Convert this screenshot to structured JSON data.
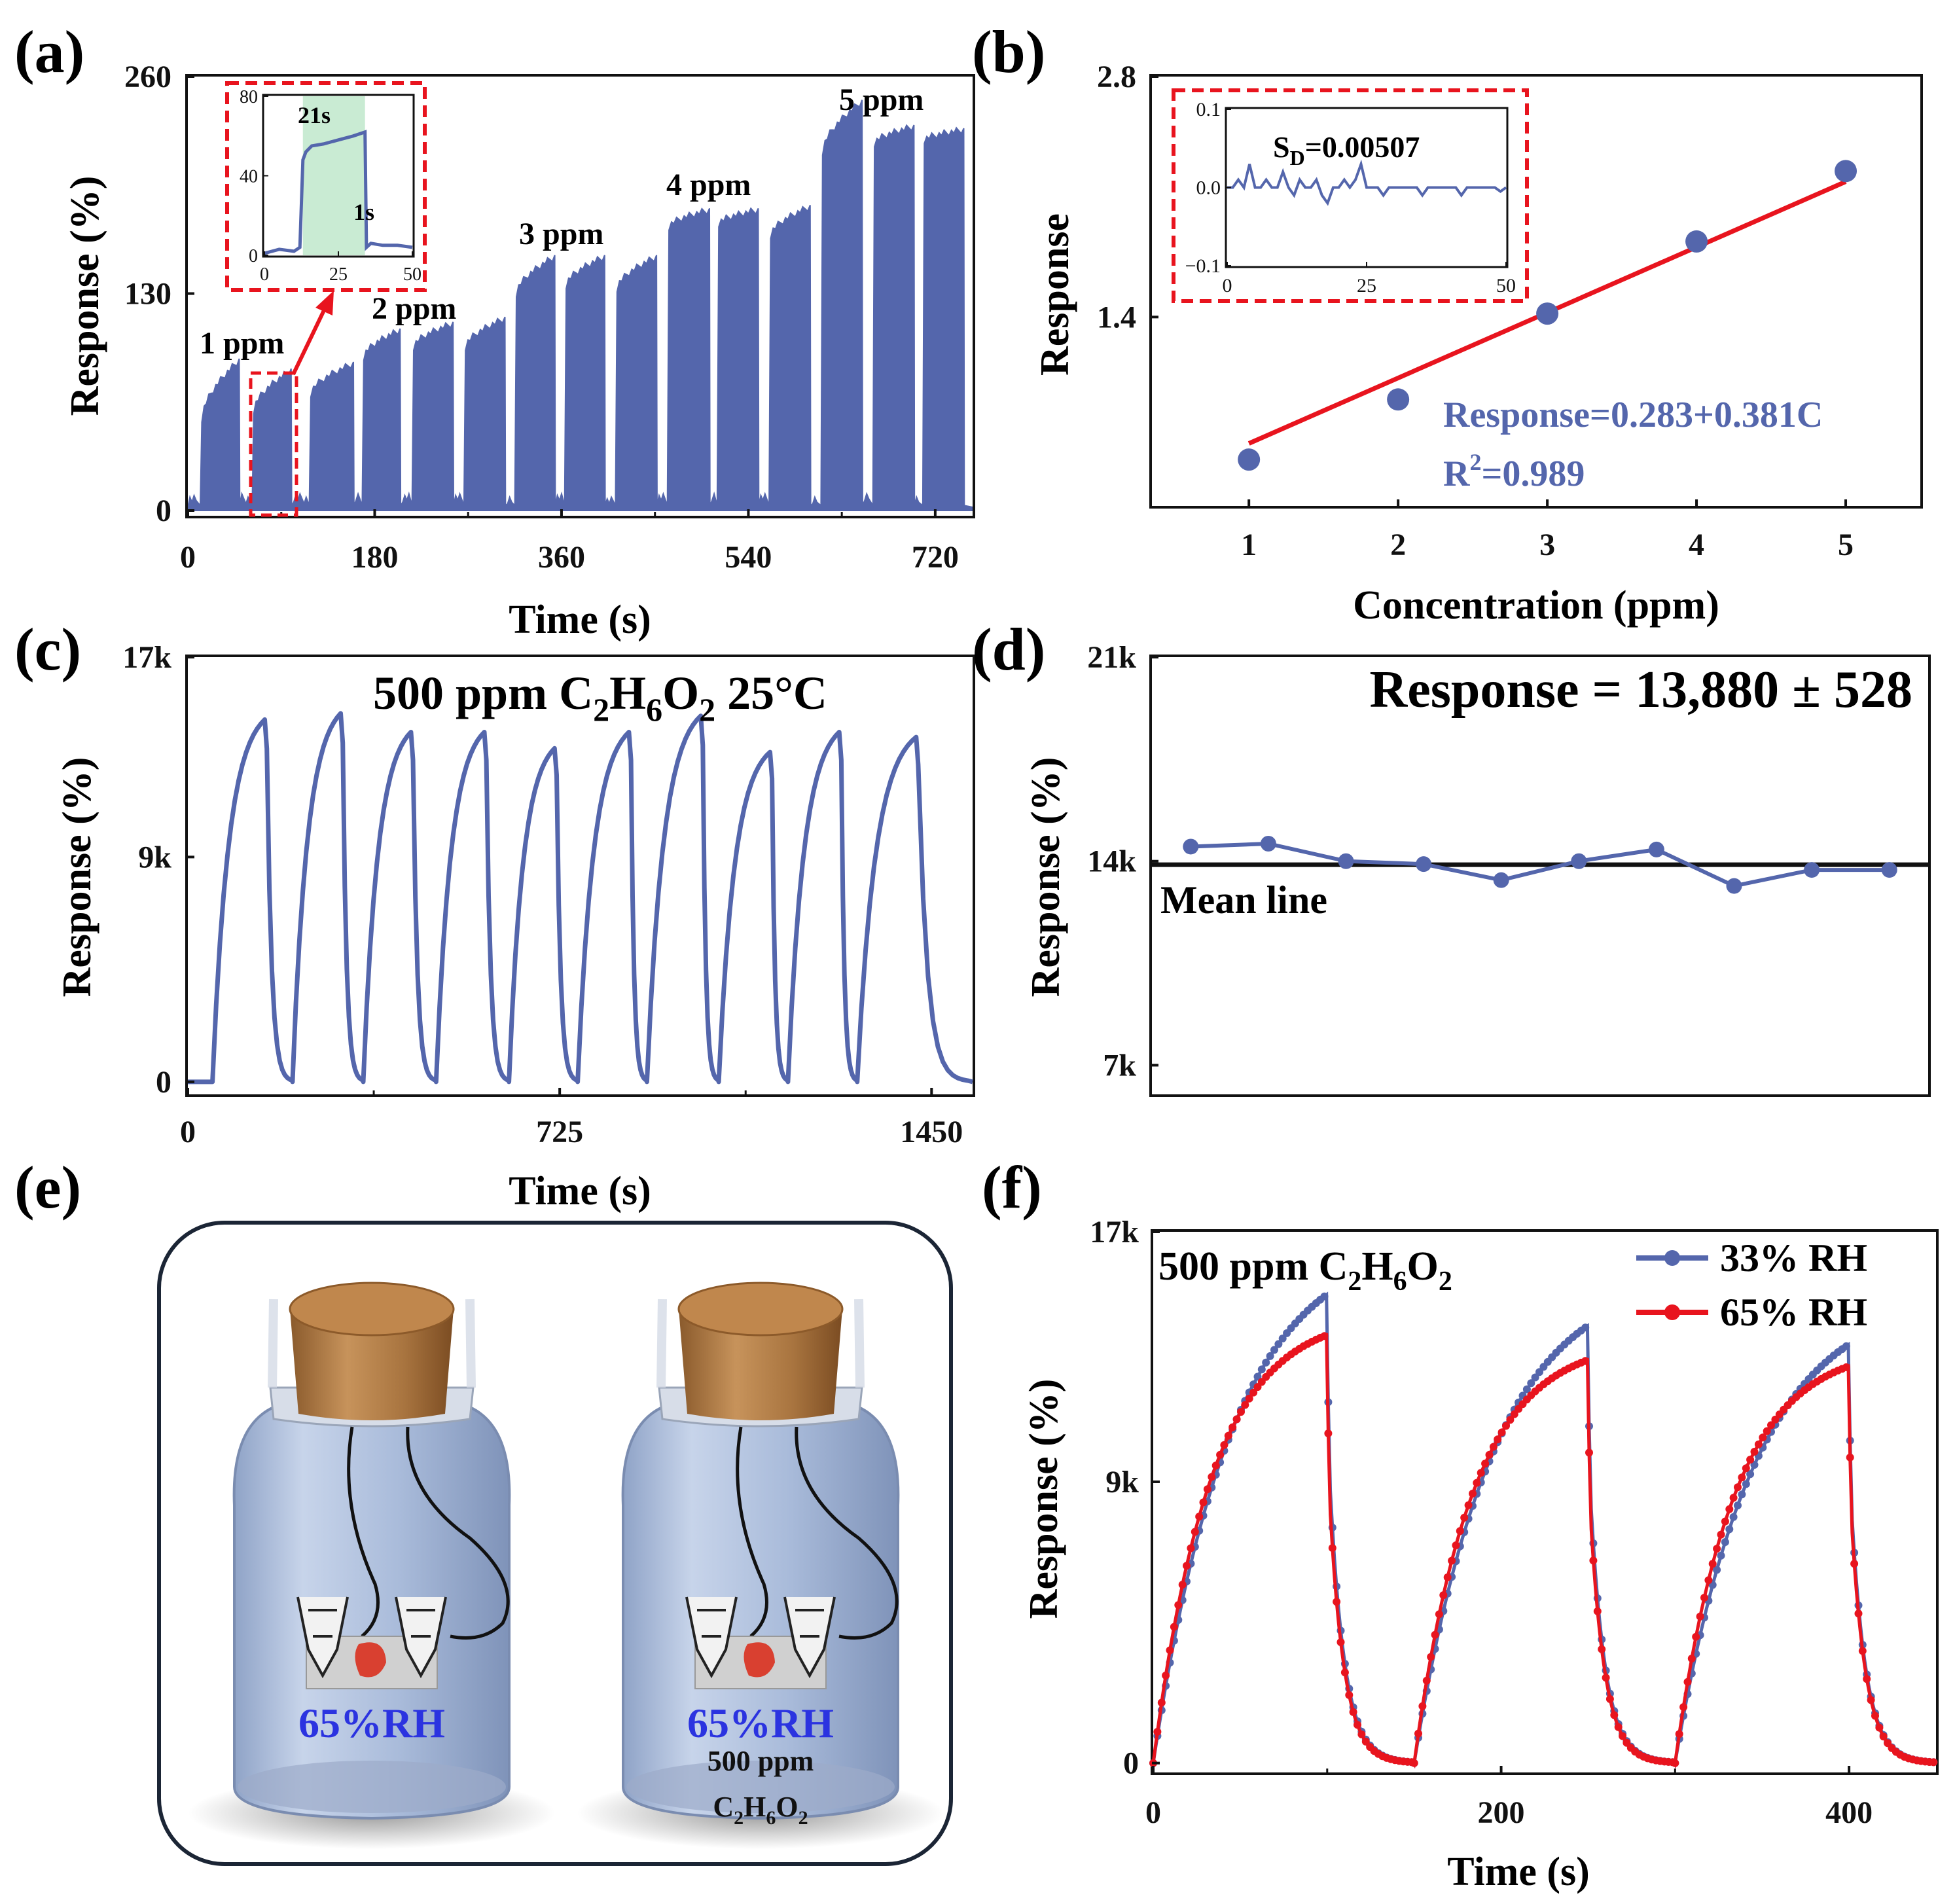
{
  "colors": {
    "blue": "#5466AC",
    "red": "#E8141E",
    "black": "#111111",
    "green_band": "#C9EBD3",
    "rh_text": "#2B33E0"
  },
  "panel_a": {
    "letter": "(a)",
    "ylabel": "Response (%)",
    "xlabel": "Time (s)",
    "annotations": [
      "1 ppm",
      "2 ppm",
      "3 ppm",
      "4 ppm",
      "5 ppm"
    ],
    "inset": {
      "label_high": "21s",
      "label_low": "1s",
      "xticks": [
        "0",
        "25",
        "50"
      ],
      "yticks": [
        "0",
        "40",
        "80"
      ]
    }
  },
  "panel_b": {
    "letter": "(b)",
    "ylabel": "Response",
    "xlabel": "Concentration (ppm)",
    "equation": "Response=0.283+0.381C",
    "r2_prefix": "R",
    "r2_sup": "2",
    "r2_suffix": "=0.989",
    "inset": {
      "sd_prefix": "S",
      "sd_sub": "D",
      "sd_value": "=0.00507",
      "xticks": [
        "0",
        "25",
        "50"
      ],
      "yticks": [
        "0.1",
        "0.0",
        "−0.1"
      ]
    }
  },
  "panel_c": {
    "letter": "(c)",
    "ylabel": "Response (%)",
    "xlabel": "Time (s)",
    "title_prefix": "500 ppm C",
    "title_sub1": "2",
    "title_h": "H",
    "title_sub2": "6",
    "title_o": "O",
    "title_sub3": "2",
    "title_suffix": " 25°C"
  },
  "panel_d": {
    "letter": "(d)",
    "ylabel": "Response (%)",
    "title": "Response = 13,880 ± 528",
    "mean_label": "Mean line"
  },
  "panel_e": {
    "letter": "(e)",
    "jar1_label": "65%RH",
    "jar2_label": "65%RH",
    "jar2_gas_line1": "500 ppm",
    "jar2_gas_c": "C",
    "jar2_gas_s1": "2",
    "jar2_gas_h": "H",
    "jar2_gas_s2": "6",
    "jar2_gas_o": "O",
    "jar2_gas_s3": "2"
  },
  "panel_f": {
    "letter": "(f)",
    "ylabel": "Response (%)",
    "xlabel": "Time (s)",
    "title_prefix": "500 ppm C",
    "title_sub1": "2",
    "title_h": "H",
    "title_sub2": "6",
    "title_o": "O",
    "title_sub3": "2",
    "legend": [
      "33% RH",
      "65% RH"
    ]
  },
  "chart_data": [
    {
      "panel": "a",
      "type": "line",
      "title": "",
      "xlabel": "Time (s)",
      "ylabel": "Response (%)",
      "xlim": [
        0,
        756
      ],
      "ylim": [
        0,
        260
      ],
      "xticks": [
        0,
        180,
        360,
        540,
        720
      ],
      "yticks": [
        0,
        130,
        260
      ],
      "annotations": [
        "1 ppm",
        "2 ppm",
        "3 ppm",
        "4 ppm",
        "5 ppm"
      ],
      "pulses": [
        {
          "t_on": 12,
          "t_off": 50,
          "start": 55,
          "peak": 90
        },
        {
          "t_on": 62,
          "t_off": 100,
          "start": 60,
          "peak": 84
        },
        {
          "t_on": 117,
          "t_off": 160,
          "start": 70,
          "peak": 88
        },
        {
          "t_on": 168,
          "t_off": 205,
          "start": 92,
          "peak": 108
        },
        {
          "t_on": 216,
          "t_off": 256,
          "start": 98,
          "peak": 112
        },
        {
          "t_on": 266,
          "t_off": 306,
          "start": 98,
          "peak": 115
        },
        {
          "t_on": 315,
          "t_off": 354,
          "start": 130,
          "peak": 152
        },
        {
          "t_on": 363,
          "t_off": 402,
          "start": 135,
          "peak": 152
        },
        {
          "t_on": 412,
          "t_off": 452,
          "start": 133,
          "peak": 152
        },
        {
          "t_on": 462,
          "t_off": 503,
          "start": 170,
          "peak": 180
        },
        {
          "t_on": 510,
          "t_off": 550,
          "start": 172,
          "peak": 180
        },
        {
          "t_on": 560,
          "t_off": 600,
          "start": 165,
          "peak": 182
        },
        {
          "t_on": 610,
          "t_off": 650,
          "start": 215,
          "peak": 245
        },
        {
          "t_on": 660,
          "t_off": 700,
          "start": 220,
          "peak": 230
        },
        {
          "t_on": 708,
          "t_off": 748,
          "start": 222,
          "peak": 228
        }
      ],
      "inset": {
        "xlim": [
          0,
          50
        ],
        "ylim": [
          0,
          80
        ],
        "response_time_s": 21,
        "recovery_time_s": 1
      }
    },
    {
      "panel": "b",
      "type": "scatter",
      "xlabel": "Concentration (ppm)",
      "ylabel": "Response",
      "xlim": [
        0.35,
        5.5
      ],
      "ylim": [
        0.3,
        2.8
      ],
      "xticks": [
        1,
        2,
        3,
        4,
        5
      ],
      "yticks": [
        1.4,
        2.8
      ],
      "x": [
        1,
        2,
        3,
        4,
        5
      ],
      "y": [
        0.57,
        0.92,
        1.42,
        1.84,
        2.25
      ],
      "fit": {
        "intercept": 0.283,
        "slope": 0.381,
        "r2": 0.989
      },
      "inset": {
        "xlim": [
          0,
          50
        ],
        "ylim": [
          -0.1,
          0.1
        ],
        "sd": 0.00507
      }
    },
    {
      "panel": "c",
      "type": "line",
      "xlabel": "Time (s)",
      "ylabel": "Response (%)",
      "xlim": [
        0,
        1530
      ],
      "ylim": [
        -500,
        17000
      ],
      "xticks": [
        0,
        725,
        1450
      ],
      "yticks": [
        0,
        9000,
        17000
      ],
      "cycles": [
        {
          "t_on": 48,
          "t_peak": 150,
          "peak": 14500
        },
        {
          "t_on": 204,
          "t_peak": 298,
          "peak": 14750
        },
        {
          "t_on": 342,
          "t_peak": 435,
          "peak": 14000
        },
        {
          "t_on": 484,
          "t_peak": 578,
          "peak": 14000
        },
        {
          "t_on": 626,
          "t_peak": 715,
          "peak": 13350
        },
        {
          "t_on": 760,
          "t_peak": 860,
          "peak": 14000
        },
        {
          "t_on": 895,
          "t_peak": 1000,
          "peak": 14650
        },
        {
          "t_on": 1035,
          "t_peak": 1135,
          "peak": 13200
        },
        {
          "t_on": 1170,
          "t_peak": 1270,
          "peak": 14000
        },
        {
          "t_on": 1305,
          "t_peak": 1420,
          "peak": 13800
        }
      ]
    },
    {
      "panel": "d",
      "type": "line",
      "ylabel": "Response (%)",
      "xlim": [
        0.5,
        10.5
      ],
      "ylim": [
        6000,
        21000
      ],
      "yticks": [
        7000,
        14000,
        21000
      ],
      "x": [
        1,
        2,
        3,
        4,
        5,
        6,
        7,
        8,
        9,
        10
      ],
      "y": [
        14500,
        14600,
        14000,
        13900,
        13350,
        14000,
        14400,
        13150,
        13700,
        13700
      ],
      "mean": 13880,
      "std": 528
    },
    {
      "panel": "f",
      "type": "scatter",
      "xlabel": "Time (s)",
      "ylabel": "Response (%)",
      "xlim": [
        0,
        450
      ],
      "ylim": [
        -300,
        17000
      ],
      "xticks": [
        0,
        200,
        400
      ],
      "yticks": [
        0,
        9000,
        17000
      ],
      "series": [
        {
          "name": "33% RH",
          "cycles": [
            {
              "t_on": 0,
              "t_off": 100,
              "peak": 15000
            },
            {
              "t_on": 150,
              "t_off": 250,
              "peak": 14000
            },
            {
              "t_on": 300,
              "t_off": 400,
              "peak": 13400
            }
          ]
        },
        {
          "name": "65% RH",
          "cycles": [
            {
              "t_on": 0,
              "t_off": 100,
              "peak": 13700
            },
            {
              "t_on": 150,
              "t_off": 250,
              "peak": 12900
            },
            {
              "t_on": 300,
              "t_off": 400,
              "peak": 12700
            }
          ]
        }
      ]
    }
  ]
}
